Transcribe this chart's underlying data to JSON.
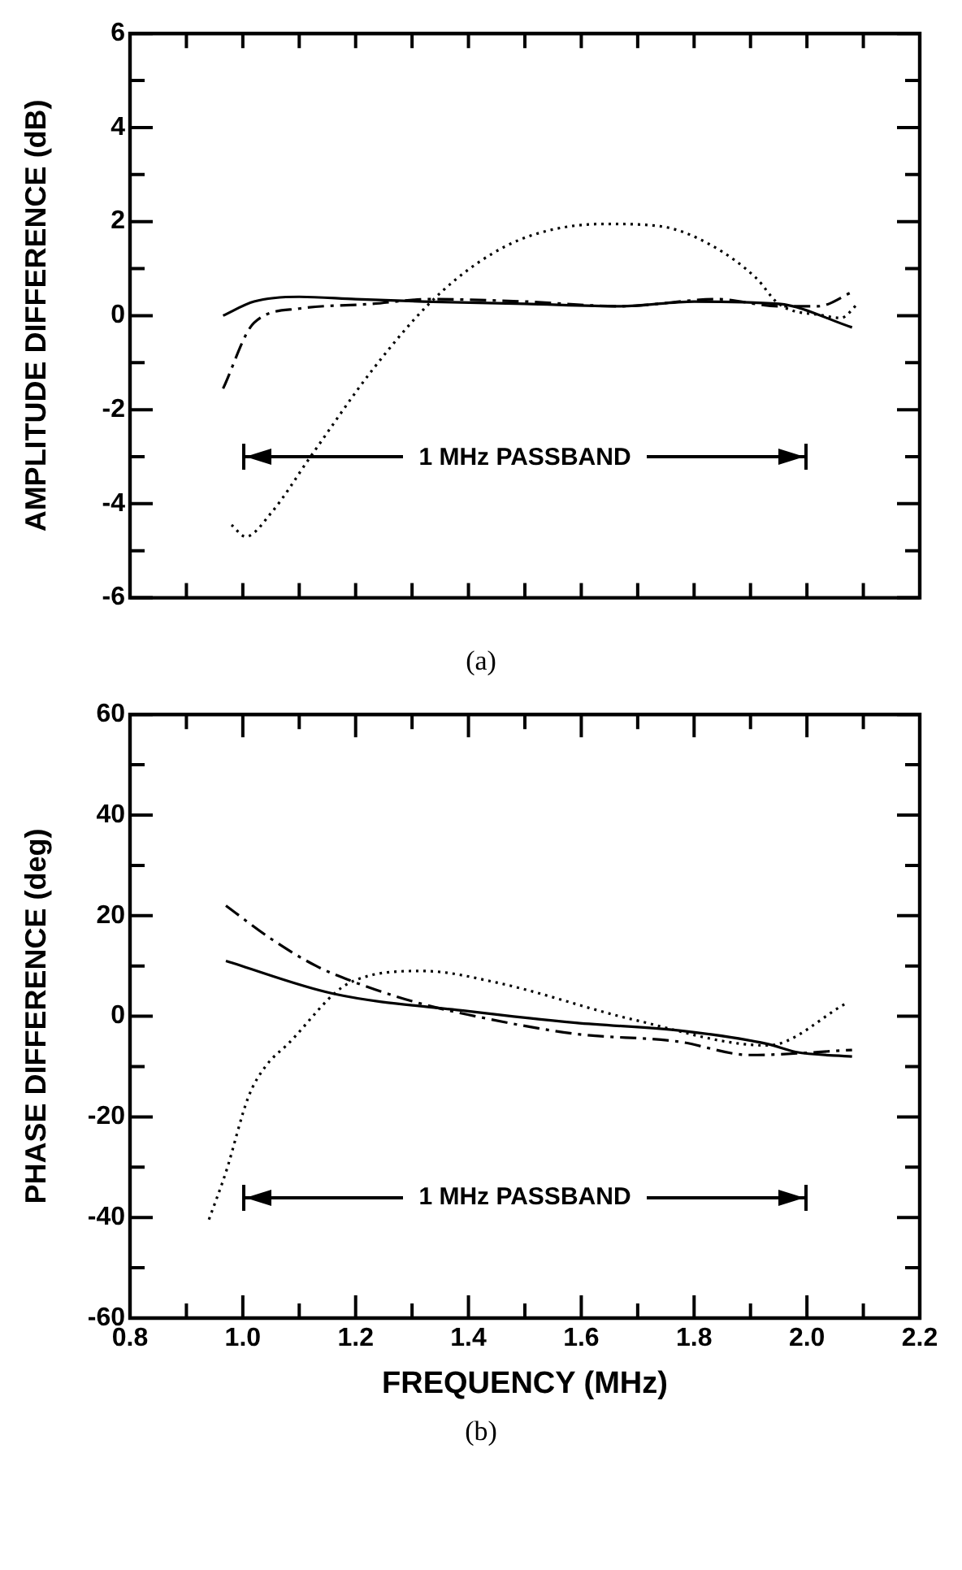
{
  "chart_data": [
    {
      "type": "line",
      "title": "(a)",
      "ylabel": "AMPLITUDE DIFFERENCE (dB)",
      "xlim": [
        0.8,
        2.2
      ],
      "xticks": [
        {
          "value": 0.8,
          "label": null
        },
        {
          "value": 0.9,
          "label": null
        },
        {
          "value": 1.0,
          "label": null
        },
        {
          "value": 1.1,
          "label": null
        },
        {
          "value": 1.2,
          "label": null
        },
        {
          "value": 1.3,
          "label": null
        },
        {
          "value": 1.4,
          "label": null
        },
        {
          "value": 1.5,
          "label": null
        },
        {
          "value": 1.6,
          "label": null
        },
        {
          "value": 1.7,
          "label": null
        },
        {
          "value": 1.8,
          "label": null
        },
        {
          "value": 1.9,
          "label": null
        },
        {
          "value": 2.0,
          "label": null
        },
        {
          "value": 2.1,
          "label": null
        },
        {
          "value": 2.2,
          "label": null
        }
      ],
      "ylim": [
        -6,
        6
      ],
      "yticks": [
        -6,
        {
          "value": -5,
          "label": null
        },
        -4,
        {
          "value": -3,
          "label": null
        },
        -2,
        {
          "value": -1,
          "label": null
        },
        0,
        {
          "value": 1,
          "label": null
        },
        2,
        {
          "value": 3,
          "label": null
        },
        4,
        {
          "value": 5,
          "label": null
        },
        6
      ],
      "tick_labels": "y",
      "grid": false,
      "legend": false,
      "marker": "none",
      "series": [
        {
          "color": "#000000",
          "line_style": "solid",
          "x": [
            0.965,
            1.02,
            1.1,
            1.2,
            1.32,
            1.5,
            1.67,
            1.8,
            1.95,
            2.08
          ],
          "values": [
            0,
            0.3,
            0.4,
            0.35,
            0.3,
            0.25,
            0.2,
            0.3,
            0.25,
            -0.25
          ]
        },
        {
          "color": "#000000",
          "line_style": "dashed",
          "x": [
            0.965,
            1.02,
            1.1,
            1.23,
            1.33,
            1.5,
            1.67,
            1.84,
            1.95,
            2.02,
            2.08
          ],
          "values": [
            -1.55,
            -0.15,
            0.15,
            0.25,
            0.35,
            0.3,
            0.2,
            0.35,
            0.2,
            0.2,
            0.5
          ]
        },
        {
          "color": "#000000",
          "line_style": "dotted",
          "x": [
            0.98,
            1.005,
            1.05,
            1.12,
            1.23,
            1.33,
            1.42,
            1.51,
            1.64,
            1.74,
            1.83,
            1.91,
            1.95,
            2.03,
            2.06,
            2.09
          ],
          "values": [
            -4.45,
            -4.7,
            -4.2,
            -3.0,
            -1.15,
            0.25,
            1.15,
            1.7,
            1.95,
            1.9,
            1.5,
            0.8,
            0.25,
            0,
            -0.05,
            0.25
          ]
        }
      ],
      "annotations": [
        "1 MHz PASSBAND"
      ]
    },
    {
      "type": "line",
      "title": "(b)",
      "xlabel": "FREQUENCY (MHz)",
      "ylabel": "PHASE DIFFERENCE (deg)",
      "xlim": [
        0.8,
        2.2
      ],
      "xticks": [
        0.8,
        {
          "value": 0.9,
          "label": null
        },
        {
          "value": 1.0,
          "label": "1.0"
        },
        {
          "value": 1.1,
          "label": null
        },
        1.2,
        {
          "value": 1.3,
          "label": null
        },
        1.4,
        {
          "value": 1.5,
          "label": null
        },
        1.6,
        {
          "value": 1.7,
          "label": null
        },
        1.8,
        {
          "value": 1.9,
          "label": null
        },
        {
          "value": 2.0,
          "label": "2.0"
        },
        {
          "value": 2.1,
          "label": null
        },
        2.2
      ],
      "ylim": [
        -60,
        60
      ],
      "yticks": [
        -60,
        {
          "value": -50,
          "label": null
        },
        -40,
        {
          "value": -30,
          "label": null
        },
        -20,
        {
          "value": -10,
          "label": null
        },
        0,
        {
          "value": 10,
          "label": null
        },
        20,
        {
          "value": 30,
          "label": null
        },
        40,
        {
          "value": 50,
          "label": null
        },
        60
      ],
      "grid": false,
      "legend": false,
      "marker": "none",
      "series": [
        {
          "color": "#000000",
          "line_style": "solid",
          "x": [
            0.97,
            1.16,
            1.4,
            1.59,
            1.78,
            1.93,
            1.98,
            2.08
          ],
          "values": [
            11,
            4.5,
            1,
            -1.3,
            -2.9,
            -5.5,
            -7.1,
            -8
          ]
        },
        {
          "color": "#000000",
          "line_style": "dashed",
          "x": [
            0.97,
            1.05,
            1.13,
            1.2,
            1.3,
            1.4,
            1.59,
            1.77,
            1.9,
            2.08
          ],
          "values": [
            22,
            15.4,
            10,
            6.7,
            3,
            0.3,
            -3.5,
            -5,
            -7.7,
            -6.7
          ]
        },
        {
          "color": "#000000",
          "line_style": "dotted",
          "x": [
            0.94,
            0.97,
            1.01,
            1.04,
            1.08,
            1.19,
            1.32,
            1.45,
            1.69,
            1.93,
            2.07
          ],
          "values": [
            -40.4,
            -31,
            -16,
            -10,
            -5.5,
            6.7,
            9,
            6.7,
            -0.6,
            -5.8,
            2.6
          ]
        }
      ],
      "annotations": [
        "1 MHz PASSBAND"
      ]
    }
  ]
}
